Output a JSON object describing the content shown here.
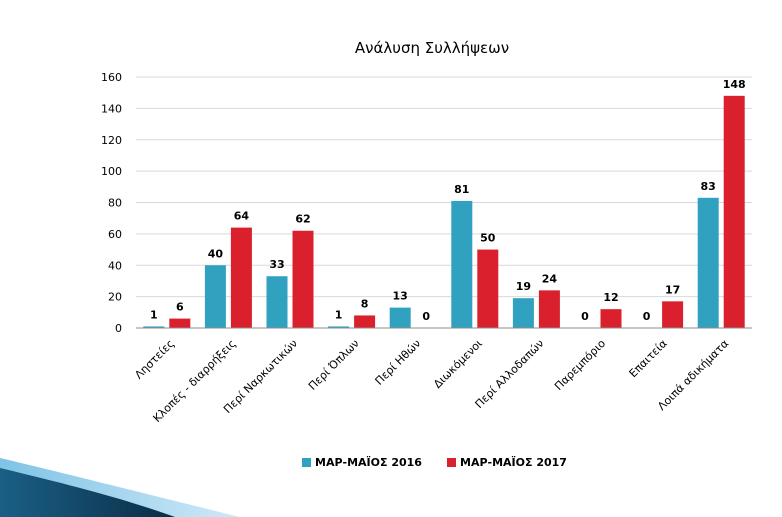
{
  "chart_data": {
    "type": "bar",
    "title": "Ανάλυση Συλλήψεων",
    "categories": [
      "Ληστείες",
      "Κλοπές - διαρρήξεις",
      "Περί Ναρκωτικών",
      "Περί Όπλων",
      "Περί Ηθών",
      "Διωκόμενοι",
      "Περί Αλλοδαπών",
      "Παρεμπόριο",
      "Επαιτεία",
      "Λοιπά αδικήματα"
    ],
    "series": [
      {
        "name": "ΜΑΡ-ΜΑΪΟΣ 2016",
        "color": "#31A1C0",
        "values": [
          1,
          40,
          33,
          1,
          13,
          81,
          19,
          0,
          0,
          83
        ]
      },
      {
        "name": "ΜΑΡ-ΜΑΪΟΣ 2017",
        "color": "#D9202C",
        "values": [
          6,
          64,
          62,
          8,
          0,
          50,
          24,
          12,
          17,
          148
        ]
      }
    ],
    "xlabel": "",
    "ylabel": "",
    "ylim": [
      0,
      160
    ],
    "yticks": [
      0,
      20,
      40,
      60,
      80,
      100,
      120,
      140,
      160
    ],
    "grid": true,
    "legend": "bottom"
  }
}
